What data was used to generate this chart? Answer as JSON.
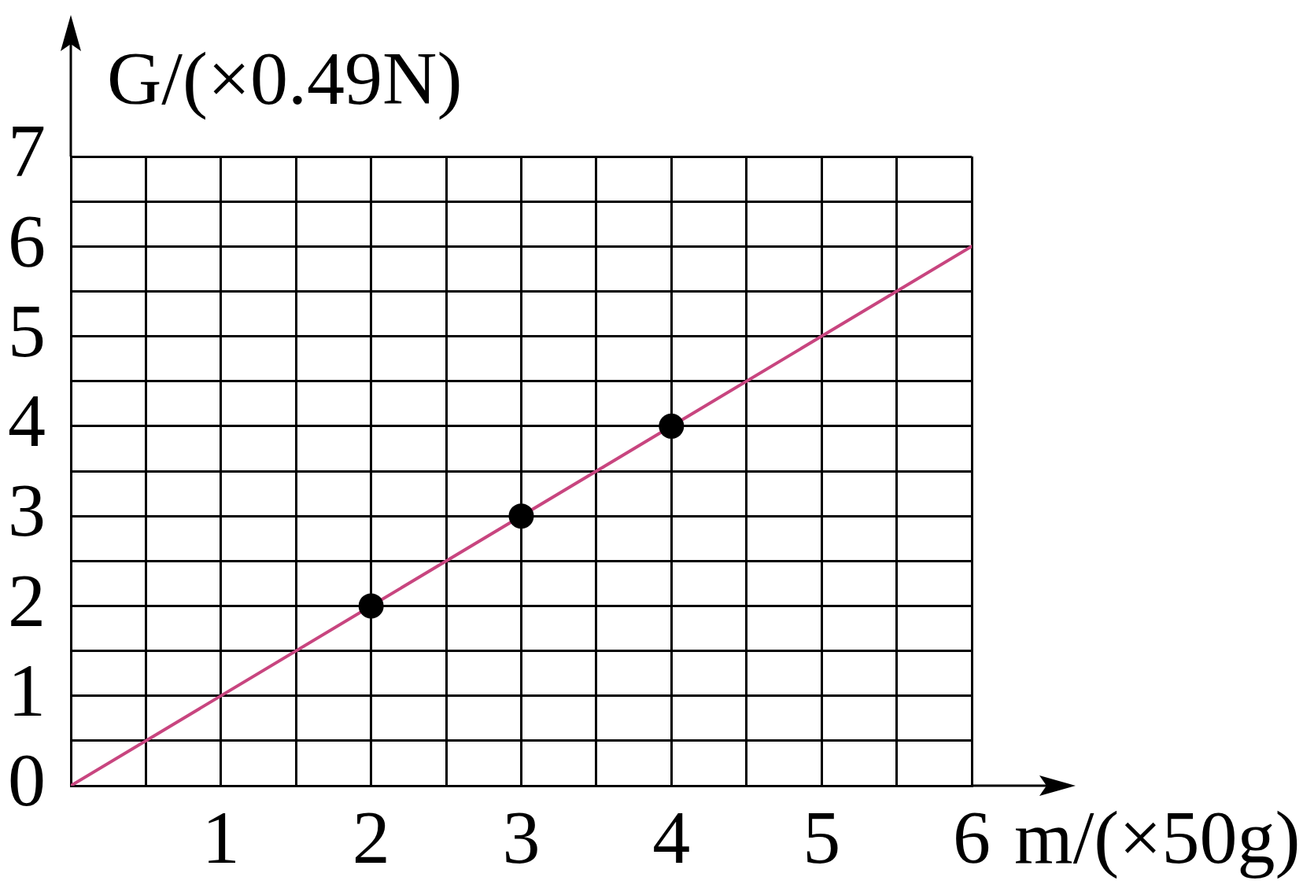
{
  "chart_data": {
    "type": "scatter",
    "xlabel": "m/(×50g)",
    "ylabel": "G/(×0.49N)",
    "xlim": [
      0,
      6
    ],
    "ylim": [
      0,
      7
    ],
    "xticks": [
      {
        "value": 0,
        "label": null
      },
      {
        "value": 0.5,
        "label": null
      },
      1,
      {
        "value": 1.5,
        "label": null
      },
      2,
      {
        "value": 2.5,
        "label": null
      },
      3,
      {
        "value": 3.5,
        "label": null
      },
      4,
      {
        "value": 4.5,
        "label": null
      },
      5,
      {
        "value": 5.5,
        "label": null
      },
      6
    ],
    "yticks": [
      0,
      {
        "value": 0.5,
        "label": null
      },
      1,
      {
        "value": 1.5,
        "label": null
      },
      2,
      {
        "value": 2.5,
        "label": null
      },
      3,
      {
        "value": 3.5,
        "label": null
      },
      4,
      {
        "value": 4.5,
        "label": null
      },
      5,
      {
        "value": 5.5,
        "label": null
      },
      6,
      {
        "value": 6.5,
        "label": null
      },
      7
    ],
    "grid": true,
    "legend": false,
    "series": [
      {
        "type": "line",
        "color": "#c8457f",
        "x": [
          0,
          6
        ],
        "values": [
          0,
          6
        ]
      },
      {
        "type": "scatter",
        "color": "#000000",
        "marker": "circle",
        "x": [
          2,
          3,
          4
        ],
        "values": [
          2,
          3,
          4
        ]
      }
    ]
  }
}
